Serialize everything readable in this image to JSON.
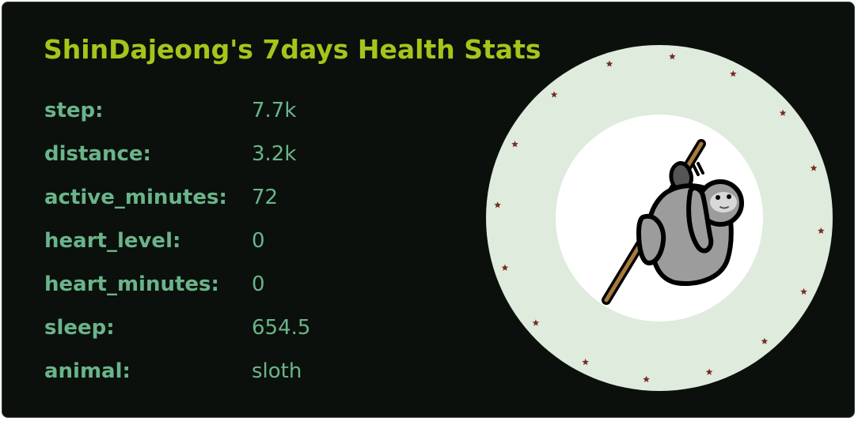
{
  "title": "ShinDajeong's 7days Health Stats",
  "stats": [
    {
      "label": "step:",
      "value": "7.7k"
    },
    {
      "label": "distance:",
      "value": "3.2k"
    },
    {
      "label": "active_minutes:",
      "value": "72"
    },
    {
      "label": "heart_level:",
      "value": "0"
    },
    {
      "label": "heart_minutes:",
      "value": "0"
    },
    {
      "label": "sleep:",
      "value": "654.5"
    },
    {
      "label": "animal:",
      "value": "sloth"
    }
  ],
  "badge": {
    "icon": "sloth-icon",
    "ring_color": "#deebdd",
    "star_color": "#7a2a22",
    "inner_color": "#ffffff"
  },
  "colors": {
    "background": "#0b100c",
    "title": "#a6c51a",
    "text": "#6ab48a"
  }
}
